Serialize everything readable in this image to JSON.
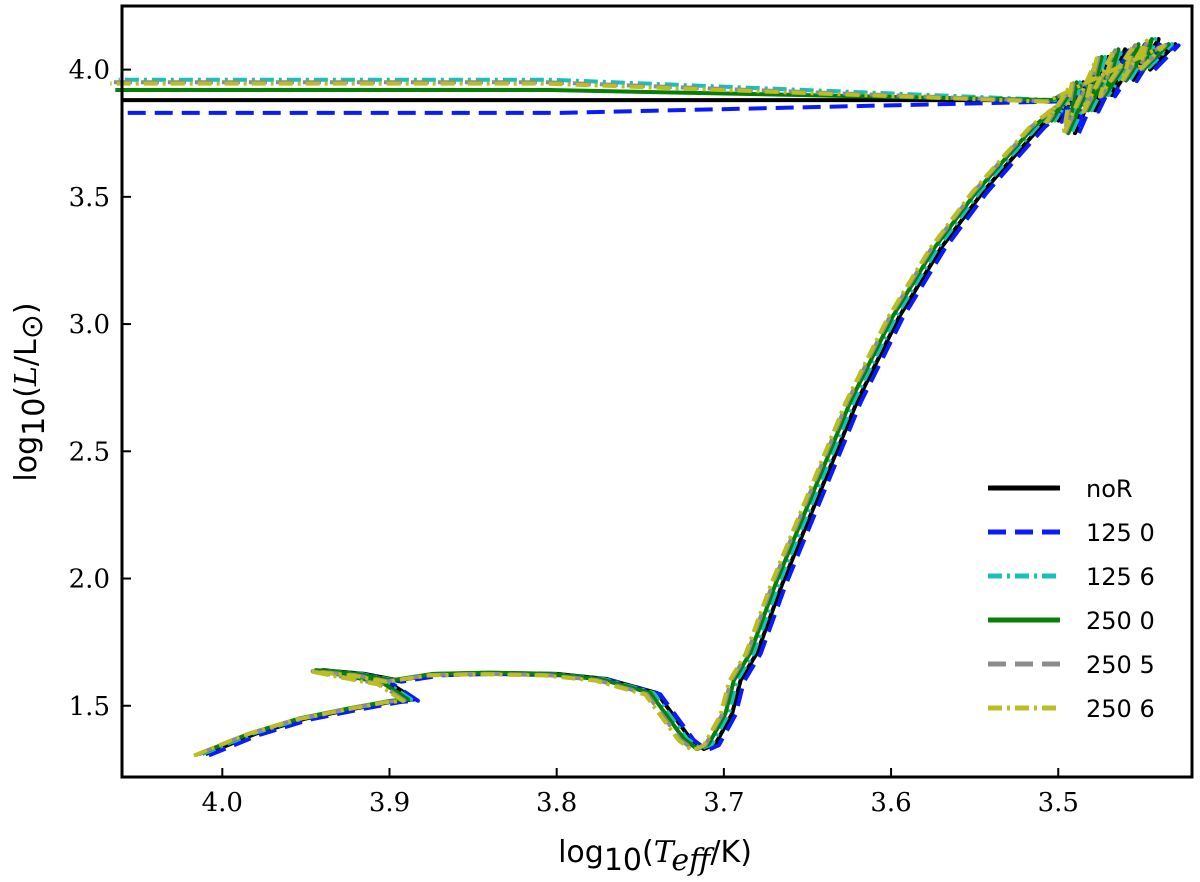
{
  "chart_data": {
    "type": "line",
    "title": "",
    "xlabel": "log10(Teff/K)",
    "ylabel": "log10(L/L☉)",
    "xlabel_parts": {
      "fn": "log",
      "sub": "10",
      "open": "(",
      "var": "T",
      "var_sub": "eff",
      "unit": "/K)"
    },
    "ylabel_parts": {
      "fn": "log",
      "sub": "10",
      "open": "(",
      "var": "L",
      "unit": "/L",
      "unit_sub": "⊙",
      "close": ")"
    },
    "xlim": [
      4.06,
      3.42
    ],
    "ylim": [
      1.22,
      4.25
    ],
    "xticks": [
      {
        "value": 4.0,
        "label": "4.0"
      },
      {
        "value": 3.9,
        "label": "3.9"
      },
      {
        "value": 3.8,
        "label": "3.8"
      },
      {
        "value": 3.7,
        "label": "3.7"
      },
      {
        "value": 3.6,
        "label": "3.6"
      },
      {
        "value": 3.5,
        "label": "3.5"
      }
    ],
    "yticks": [
      {
        "value": 1.5,
        "label": "1.5"
      },
      {
        "value": 2.0,
        "label": "2.0"
      },
      {
        "value": 2.5,
        "label": "2.5"
      },
      {
        "value": 3.0,
        "label": "3.0"
      },
      {
        "value": 3.5,
        "label": "3.5"
      },
      {
        "value": 4.0,
        "label": "4.0"
      }
    ],
    "grid": false,
    "legend_position": "lower-right",
    "series": [
      {
        "name": "noR",
        "color": "#000000",
        "style": "solid",
        "offset": [
          0.0,
          0.0
        ],
        "plateau": 3.88
      },
      {
        "name": "125 0",
        "color": "#0a1aff",
        "style": "dashed",
        "offset": [
          -0.002,
          -0.005
        ],
        "plateau": 3.83
      },
      {
        "name": "125 6",
        "color": "#17bfbf",
        "style": "dashdot",
        "offset": [
          0.002,
          0.0
        ],
        "plateau": 3.96
      },
      {
        "name": "250 0",
        "color": "#078007",
        "style": "solid",
        "offset": [
          0.004,
          0.0
        ],
        "plateau": 3.92
      },
      {
        "name": "250 5",
        "color": "#8c8c8c",
        "style": "dashed",
        "offset": [
          0.006,
          -0.004
        ],
        "plateau": 3.95
      },
      {
        "name": "250 6",
        "color": "#bcbd22",
        "style": "dashdot",
        "offset": [
          0.007,
          -0.006
        ],
        "plateau": 3.945
      }
    ],
    "base_track": [
      [
        4.01,
        1.31
      ],
      [
        3.98,
        1.39
      ],
      [
        3.95,
        1.45
      ],
      [
        3.92,
        1.49
      ],
      [
        3.895,
        1.52
      ],
      [
        3.885,
        1.525
      ],
      [
        3.9,
        1.59
      ],
      [
        3.94,
        1.64
      ],
      [
        3.915,
        1.625
      ],
      [
        3.895,
        1.6
      ],
      [
        3.87,
        1.625
      ],
      [
        3.84,
        1.63
      ],
      [
        3.8,
        1.625
      ],
      [
        3.77,
        1.605
      ],
      [
        3.74,
        1.55
      ],
      [
        3.72,
        1.37
      ],
      [
        3.712,
        1.33
      ],
      [
        3.705,
        1.35
      ],
      [
        3.695,
        1.47
      ],
      [
        3.69,
        1.6
      ],
      [
        3.68,
        1.71
      ],
      [
        3.665,
        1.98
      ],
      [
        3.645,
        2.3
      ],
      [
        3.62,
        2.7
      ],
      [
        3.595,
        3.03
      ],
      [
        3.57,
        3.3
      ],
      [
        3.545,
        3.52
      ],
      [
        3.525,
        3.67
      ],
      [
        3.51,
        3.78
      ],
      [
        3.495,
        3.86
      ],
      [
        3.5,
        3.8
      ],
      [
        3.485,
        3.95
      ],
      [
        3.49,
        3.75
      ],
      [
        3.47,
        4.05
      ],
      [
        3.478,
        3.84
      ],
      [
        3.46,
        4.08
      ],
      [
        3.468,
        3.9
      ],
      [
        3.448,
        4.1
      ],
      [
        3.455,
        3.96
      ],
      [
        3.44,
        4.12
      ],
      [
        3.445,
        4.0
      ],
      [
        3.43,
        4.1
      ],
      [
        3.5,
        3.88
      ],
      [
        3.8,
        3.88
      ],
      [
        4.06,
        3.88
      ]
    ]
  }
}
